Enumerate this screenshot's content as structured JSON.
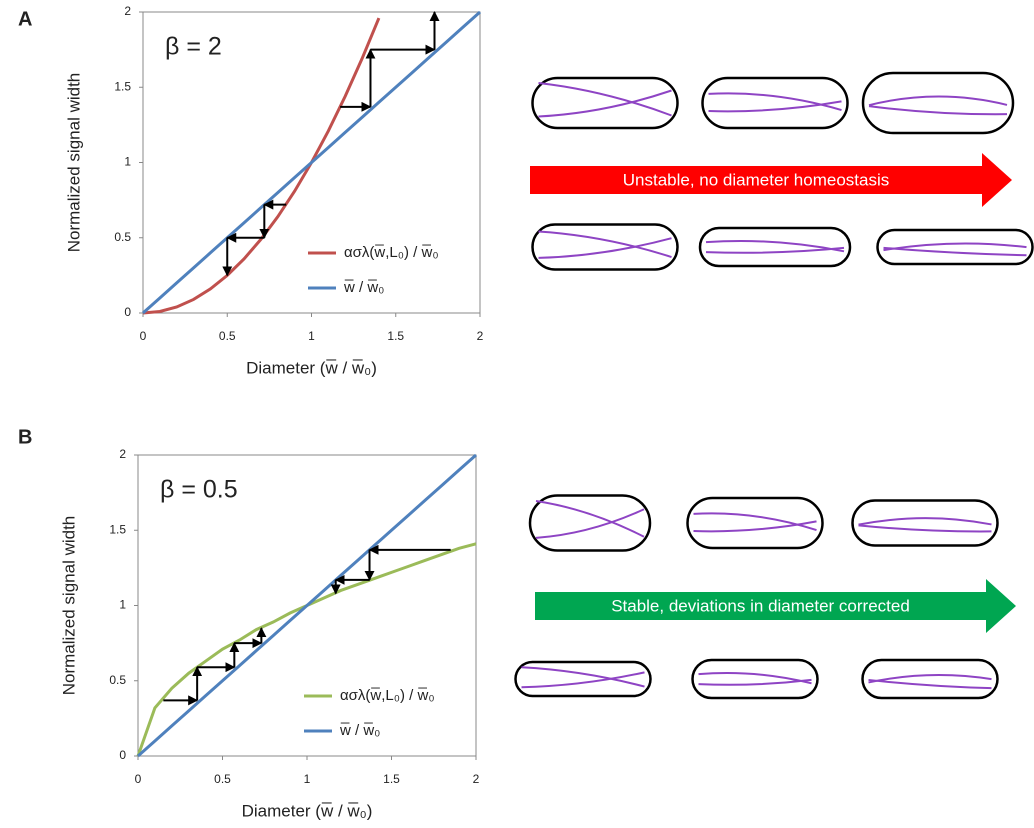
{
  "chart_data": [
    {
      "type": "line",
      "panel_label": "A",
      "annotation": "β = 2",
      "xlabel": "Diameter  (w̅ / w̅₀)",
      "ylabel": "Normalized signal width",
      "x": [
        0,
        0.1,
        0.2,
        0.3,
        0.4,
        0.5,
        0.6,
        0.7,
        0.8,
        0.9,
        1,
        1.1,
        1.2,
        1.3,
        1.4,
        1.5,
        1.6,
        1.7,
        1.8,
        1.9,
        2
      ],
      "series": [
        {
          "name": "ασλ(w̅,L₀) / w̅₀",
          "color": "#c0504d",
          "values": [
            0,
            0.01,
            0.04,
            0.09,
            0.16,
            0.25,
            0.36,
            0.49,
            0.64,
            0.81,
            1,
            1.21,
            1.44,
            1.69,
            1.96,
            null,
            null,
            null,
            null,
            null,
            null
          ]
        },
        {
          "name": "w̅ / w̅₀",
          "color": "#4f81bd",
          "values": [
            0,
            0.1,
            0.2,
            0.3,
            0.4,
            0.5,
            0.6,
            0.7,
            0.8,
            0.9,
            1,
            1.1,
            1.2,
            1.3,
            1.4,
            1.5,
            1.6,
            1.7,
            1.8,
            1.9,
            2
          ]
        }
      ],
      "cobweb": {
        "x": [
          0.85,
          0.72,
          0.72,
          0.5,
          0.5,
          null,
          1.17,
          1.35,
          1.35,
          1.73,
          1.73
        ],
        "y": [
          0.72,
          0.72,
          0.5,
          0.5,
          0.25,
          null,
          1.37,
          1.37,
          1.75,
          1.75,
          2
        ]
      },
      "xlim": [
        0,
        2
      ],
      "ylim": [
        0,
        2
      ],
      "xticks": [
        0,
        0.5,
        1,
        1.5,
        2
      ],
      "yticks": [
        0,
        0.5,
        1,
        1.5,
        2
      ],
      "legend": "lower right",
      "arrow_label": "Unstable, no diameter homeostasis",
      "arrow_color": "#ff0000"
    },
    {
      "type": "line",
      "panel_label": "B",
      "annotation": "β = 0.5",
      "xlabel": "Diameter  (w̅ / w̅₀)",
      "ylabel": "Normalized signal width",
      "x": [
        0,
        0.1,
        0.2,
        0.3,
        0.4,
        0.5,
        0.6,
        0.7,
        0.8,
        0.9,
        1,
        1.1,
        1.2,
        1.3,
        1.4,
        1.5,
        1.6,
        1.7,
        1.8,
        1.9,
        2
      ],
      "series": [
        {
          "name": "ασλ(w̅,L₀) / w̅₀",
          "color": "#9bbb59",
          "values": [
            0,
            0.32,
            0.45,
            0.55,
            0.63,
            0.71,
            0.77,
            0.84,
            0.89,
            0.95,
            1,
            1.05,
            1.1,
            1.14,
            1.18,
            1.22,
            1.26,
            1.3,
            1.34,
            1.38,
            1.41
          ]
        },
        {
          "name": "w̅ / w̅₀",
          "color": "#4f81bd",
          "values": [
            0,
            0.1,
            0.2,
            0.3,
            0.4,
            0.5,
            0.6,
            0.7,
            0.8,
            0.9,
            1,
            1.1,
            1.2,
            1.3,
            1.4,
            1.5,
            1.6,
            1.7,
            1.8,
            1.9,
            2
          ]
        }
      ],
      "cobweb": {
        "x": [
          0.15,
          0.35,
          0.35,
          0.57,
          0.57,
          0.73,
          0.73,
          null,
          1.85,
          1.37,
          1.37,
          1.17,
          1.17
        ],
        "y": [
          0.37,
          0.37,
          0.59,
          0.59,
          0.75,
          0.75,
          0.85,
          null,
          1.37,
          1.37,
          1.17,
          1.17,
          1.08
        ]
      },
      "xlim": [
        0,
        2
      ],
      "ylim": [
        0,
        2
      ],
      "xticks": [
        0,
        0.5,
        1,
        1.5,
        2
      ],
      "yticks": [
        0,
        0.5,
        1,
        1.5,
        2
      ],
      "legend": "lower right",
      "arrow_label": "Stable, deviations in diameter corrected",
      "arrow_color": "#00a651"
    }
  ]
}
